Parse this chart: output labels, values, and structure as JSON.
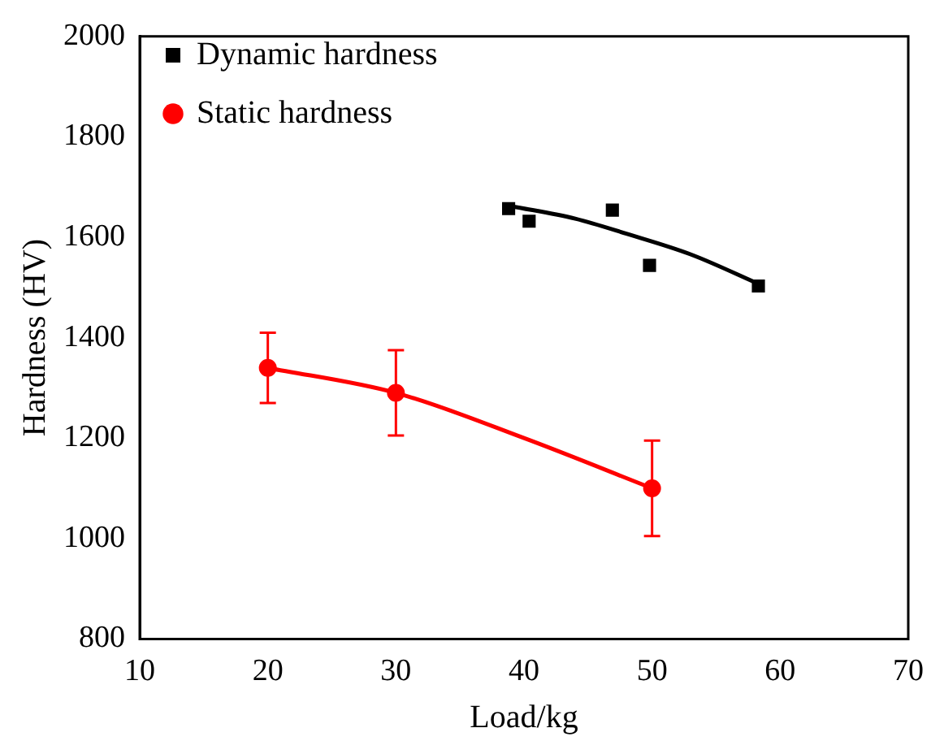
{
  "chart_data": {
    "type": "scatter",
    "xlabel": "Load/kg",
    "ylabel": "Hardness (HV)",
    "xlim": [
      10,
      70
    ],
    "xticks": [
      10,
      20,
      30,
      40,
      50,
      60,
      70
    ],
    "ylim": [
      800,
      2000
    ],
    "yticks": [
      800,
      1000,
      1200,
      1400,
      1600,
      1800,
      2000
    ],
    "grid": false,
    "legend": "top left",
    "series": [
      {
        "name": "Dynamic hardness",
        "marker": "square",
        "color": "#000000",
        "x": [
          38.8,
          40.4,
          46.9,
          49.8,
          58.3
        ],
        "values": [
          1657,
          1632,
          1654,
          1544,
          1503
        ]
      },
      {
        "type": "line",
        "marker": "none",
        "color": "#000000",
        "x": [
          39,
          44,
          48,
          53,
          58.5
        ],
        "values": [
          1662,
          1637,
          1607,
          1566,
          1505
        ]
      },
      {
        "name": "Static hardness",
        "marker": "circle",
        "color": "#ff0000",
        "x": [
          20,
          30,
          50
        ],
        "values": [
          1340,
          1290,
          1100
        ],
        "errors": [
          70,
          85,
          95
        ]
      },
      {
        "type": "line",
        "marker": "none",
        "color": "#ff0000",
        "x": [
          20,
          30,
          40,
          50
        ],
        "values": [
          1340,
          1290,
          1200,
          1100
        ]
      }
    ]
  }
}
